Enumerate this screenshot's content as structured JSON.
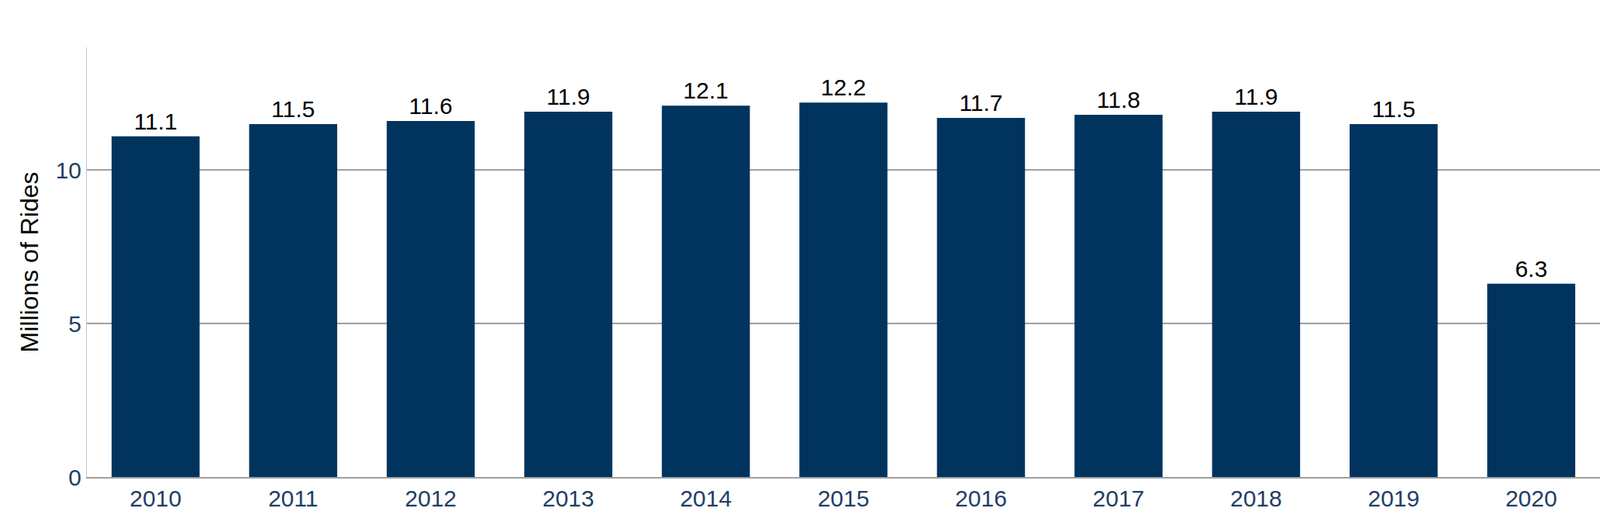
{
  "chart_data": {
    "type": "bar",
    "y_label": "Millions of Rides",
    "categories": [
      "2010",
      "2011",
      "2012",
      "2013",
      "2014",
      "2015",
      "2016",
      "2017",
      "2018",
      "2019",
      "2020"
    ],
    "values": [
      11.1,
      11.5,
      11.6,
      11.9,
      12.1,
      12.2,
      11.7,
      11.8,
      11.9,
      11.5,
      6.3
    ],
    "color": "#00345f",
    "ylim": [
      0,
      14
    ],
    "yticks": [
      0,
      5,
      10
    ],
    "grid": true,
    "data_labels": true
  }
}
